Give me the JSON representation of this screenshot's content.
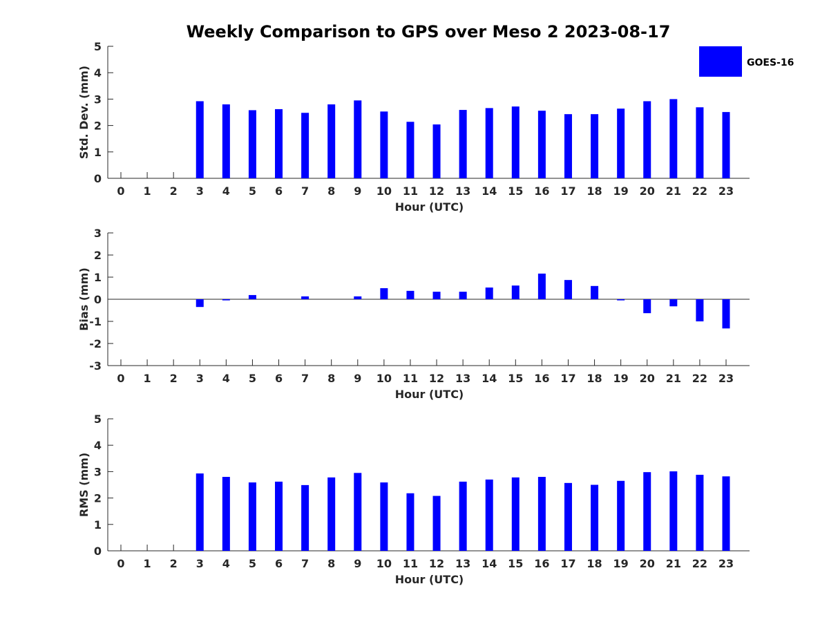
{
  "title": "Weekly Comparison to GPS over Meso 2 2023-08-17",
  "legend": {
    "label": "GOES-16",
    "color": "#0000ff",
    "position": "top-right"
  },
  "chart_data": [
    {
      "type": "bar",
      "ylabel": "Std. Dev. (mm)",
      "xlabel": "Hour (UTC)",
      "ylim": [
        0,
        5
      ],
      "yticks": [
        0,
        1,
        2,
        3,
        4,
        5
      ],
      "categories": [
        0,
        1,
        2,
        3,
        4,
        5,
        6,
        7,
        8,
        9,
        10,
        11,
        12,
        13,
        14,
        15,
        16,
        17,
        18,
        19,
        20,
        21,
        22,
        23
      ],
      "series": [
        {
          "name": "GOES-16",
          "values": [
            null,
            null,
            null,
            2.92,
            2.8,
            2.58,
            2.62,
            2.48,
            2.8,
            2.95,
            2.53,
            2.14,
            2.04,
            2.59,
            2.66,
            2.72,
            2.56,
            2.43,
            2.43,
            2.64,
            2.92,
            3.0,
            2.69,
            2.51
          ]
        }
      ],
      "grid": false
    },
    {
      "type": "bar",
      "ylabel": "Bias (mm)",
      "xlabel": "Hour (UTC)",
      "ylim": [
        -3,
        3
      ],
      "yticks": [
        -3,
        -2,
        -1,
        0,
        1,
        2,
        3
      ],
      "categories": [
        0,
        1,
        2,
        3,
        4,
        5,
        6,
        7,
        8,
        9,
        10,
        11,
        12,
        13,
        14,
        15,
        16,
        17,
        18,
        19,
        20,
        21,
        22,
        23
      ],
      "series": [
        {
          "name": "GOES-16",
          "values": [
            null,
            null,
            null,
            -0.35,
            -0.05,
            0.19,
            0.0,
            0.13,
            0.0,
            0.13,
            0.5,
            0.38,
            0.34,
            0.34,
            0.53,
            0.62,
            1.16,
            0.87,
            0.6,
            -0.05,
            -0.63,
            -0.32,
            -1.0,
            -1.32
          ]
        }
      ],
      "grid": false
    },
    {
      "type": "bar",
      "ylabel": "RMS (mm)",
      "xlabel": "Hour (UTC)",
      "ylim": [
        0,
        5
      ],
      "yticks": [
        0,
        1,
        2,
        3,
        4,
        5
      ],
      "categories": [
        0,
        1,
        2,
        3,
        4,
        5,
        6,
        7,
        8,
        9,
        10,
        11,
        12,
        13,
        14,
        15,
        16,
        17,
        18,
        19,
        20,
        21,
        22,
        23
      ],
      "series": [
        {
          "name": "GOES-16",
          "values": [
            null,
            null,
            null,
            2.93,
            2.8,
            2.59,
            2.62,
            2.49,
            2.78,
            2.95,
            2.59,
            2.18,
            2.08,
            2.62,
            2.7,
            2.78,
            2.8,
            2.57,
            2.5,
            2.65,
            2.98,
            3.01,
            2.88,
            2.82
          ]
        }
      ],
      "grid": false
    }
  ]
}
